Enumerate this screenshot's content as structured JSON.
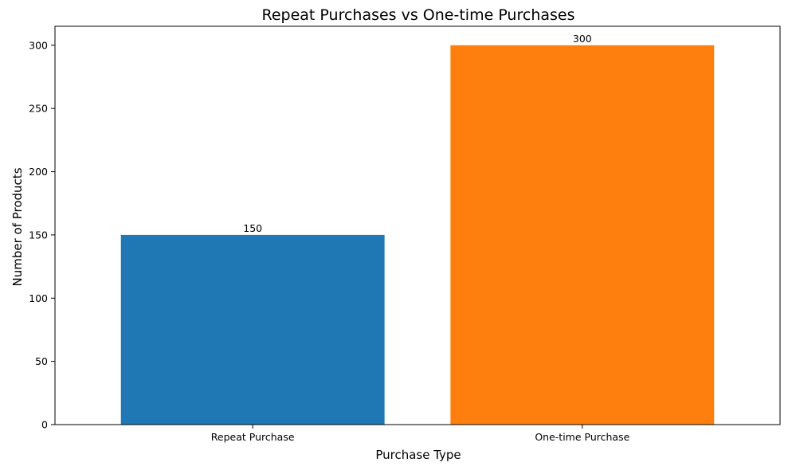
{
  "chart_data": {
    "type": "bar",
    "title": "Repeat Purchases vs One-time Purchases",
    "xlabel": "Purchase Type",
    "ylabel": "Number of Products",
    "categories": [
      "Repeat Purchase",
      "One-time Purchase"
    ],
    "values": [
      150,
      300
    ],
    "colors": [
      "#1f77b4",
      "#ff7f0e"
    ],
    "ylim": [
      0,
      315
    ],
    "yticks": [
      0,
      50,
      100,
      150,
      200,
      250,
      300
    ],
    "grid": false,
    "legend": "none"
  }
}
